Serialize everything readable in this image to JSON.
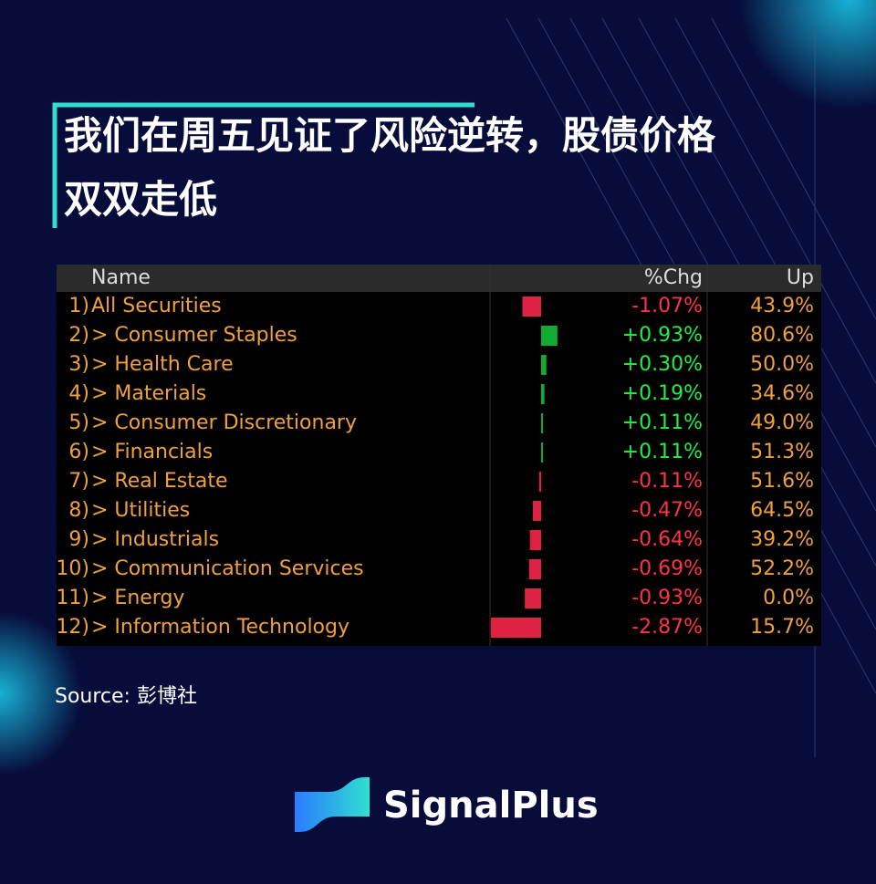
{
  "header": {
    "title_lines": [
      "我们在周五见证了风险逆转，股债价格",
      "双双走低"
    ]
  },
  "table": {
    "columns": [
      "Name",
      "%Chg",
      "Up"
    ],
    "rows": [
      {
        "index": "1)",
        "name": "All Securities",
        "chg": {
          "value": -1.07,
          "label": "-1.07%"
        },
        "up": "43.9%"
      },
      {
        "index": "2)",
        "name": "> Consumer Staples",
        "chg": {
          "value": 0.93,
          "label": "+0.93%"
        },
        "up": "80.6%"
      },
      {
        "index": "3)",
        "name": "> Health Care",
        "chg": {
          "value": 0.3,
          "label": "+0.30%"
        },
        "up": "50.0%"
      },
      {
        "index": "4)",
        "name": "> Materials",
        "chg": {
          "value": 0.19,
          "label": "+0.19%"
        },
        "up": "34.6%"
      },
      {
        "index": "5)",
        "name": "> Consumer Discretionary",
        "chg": {
          "value": 0.11,
          "label": "+0.11%"
        },
        "up": "49.0%"
      },
      {
        "index": "6)",
        "name": "> Financials",
        "chg": {
          "value": 0.11,
          "label": "+0.11%"
        },
        "up": "51.3%"
      },
      {
        "index": "7)",
        "name": "> Real Estate",
        "chg": {
          "value": -0.11,
          "label": "-0.11%"
        },
        "up": "51.6%"
      },
      {
        "index": "8)",
        "name": "> Utilities",
        "chg": {
          "value": -0.47,
          "label": "-0.47%"
        },
        "up": "64.5%"
      },
      {
        "index": "9)",
        "name": "> Industrials",
        "chg": {
          "value": -0.64,
          "label": "-0.64%"
        },
        "up": "39.2%"
      },
      {
        "index": "10)",
        "name": "> Communication Services",
        "chg": {
          "value": -0.69,
          "label": "-0.69%"
        },
        "up": "52.2%"
      },
      {
        "index": "11)",
        "name": "> Energy",
        "chg": {
          "value": -0.93,
          "label": "-0.93%"
        },
        "up": "0.0%"
      },
      {
        "index": "12)",
        "name": "> Information Technology",
        "chg": {
          "value": -2.87,
          "label": "-2.87%"
        },
        "up": "15.7%"
      }
    ]
  },
  "source": "Source: 彭博社",
  "brand": "SignalPlus"
}
